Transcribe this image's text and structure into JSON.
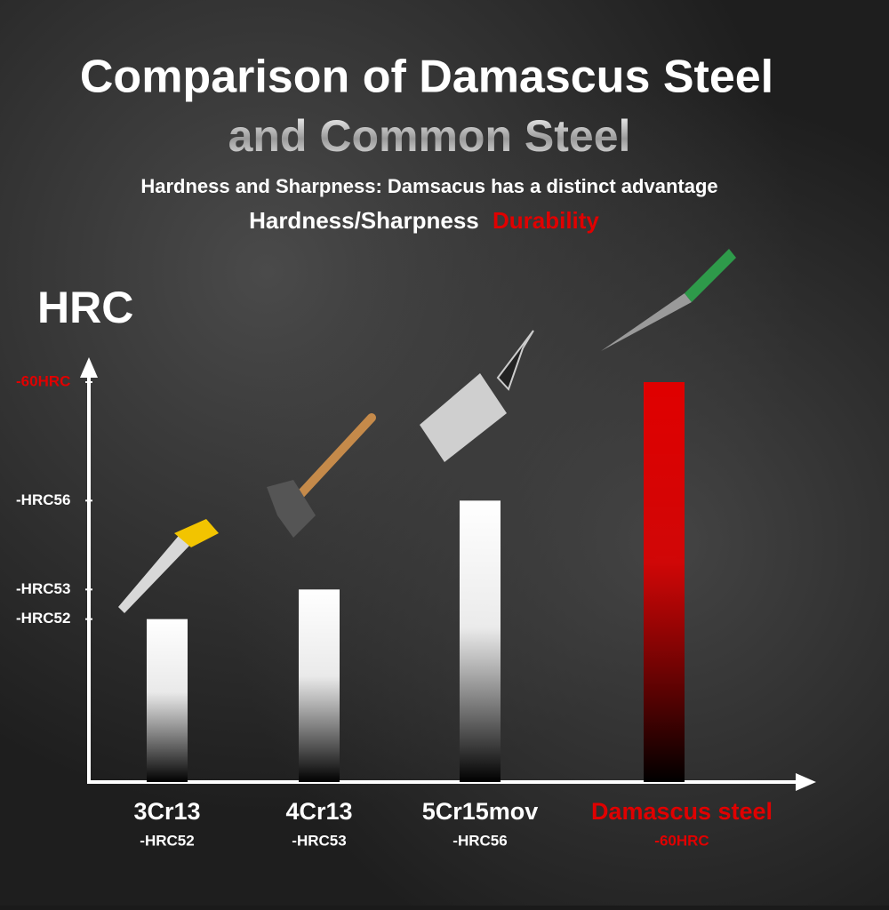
{
  "chart_data": {
    "type": "bar",
    "title": "Comparison of Damascus Steel",
    "title_line2": "and Common Steel",
    "subtitle": "Hardness and Sharpness: Damsacus has a distinct advantage",
    "tagline": "Hardness/Sharpness",
    "tagline_highlight": "Durability",
    "y_label": "HRC",
    "categories": [
      "3Cr13",
      "4Cr13",
      "5Cr15mov",
      "Damascus steel"
    ],
    "values": [
      52,
      53,
      56,
      60
    ],
    "value_labels": [
      "-HRC52",
      "-HRC53",
      "-HRC56",
      "-60HRC"
    ],
    "colors": [
      "#ffffff",
      "#ffffff",
      "#ffffff",
      "#e00000"
    ],
    "ylim": [
      46.5,
      60.3
    ],
    "yticks": [
      {
        "value": 52,
        "label": "-HRC52"
      },
      {
        "value": 53,
        "label": "-HRC53"
      },
      {
        "value": 56,
        "label": "-HRC56"
      },
      {
        "value": 60,
        "label": "-60HRC"
      }
    ],
    "ytick_colors": [
      "#ffffff",
      "#ffffff",
      "#ffffff",
      "#e00000"
    ]
  }
}
